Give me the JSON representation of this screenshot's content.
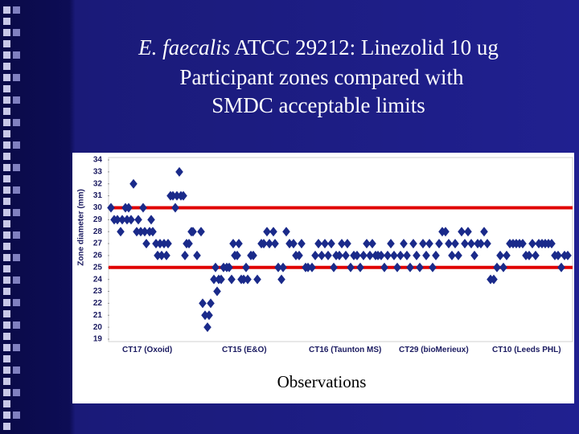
{
  "chart_data": {
    "type": "scatter",
    "title_italic": "E. faecalis",
    "title_rest": " ATCC 29212: Linezolid 10 ug",
    "subtitle_lines": [
      "Participant zones compared with",
      "SMDC acceptable limits"
    ],
    "ylabel": "Zone diameter (mm)",
    "xlabel": "Observations",
    "group_labels": [
      "CT17 (Oxoid)",
      "CT15 (E&O)",
      "CT16 (Taunton MS)",
      "CT29 (bioMerieux)",
      "CT10 (Leeds PHL)"
    ],
    "ylim": [
      19,
      34
    ],
    "yticks": [
      19,
      20,
      21,
      22,
      23,
      24,
      25,
      26,
      27,
      28,
      29,
      30,
      31,
      32,
      33,
      34
    ],
    "xlim": [
      0,
      573
    ],
    "reference_lines": [
      30,
      25
    ],
    "reference_color": "#e00000",
    "series": [
      {
        "name": "Participant zones",
        "color": "#1a2a8a",
        "x": [
          1,
          5,
          9,
          13,
          15,
          19,
          21,
          23,
          26,
          29,
          33,
          35,
          38,
          41,
          43,
          45,
          49,
          51,
          53,
          57,
          59,
          62,
          64,
          67,
          70,
          72,
          75,
          78,
          81,
          83,
          86,
          88,
          91,
          93,
          95,
          98,
          101,
          103,
          108,
          113,
          115,
          118,
          121,
          123,
          125,
          129,
          131,
          133,
          135,
          138,
          141,
          145,
          148,
          151,
          153,
          155,
          158,
          160,
          163,
          166,
          169,
          171,
          175,
          178,
          183,
          188,
          191,
          195,
          198,
          203,
          205,
          209,
          213,
          215,
          219,
          223,
          228,
          231,
          235,
          238,
          243,
          246,
          251,
          255,
          259,
          263,
          267,
          271,
          275,
          278,
          281,
          285,
          288,
          293,
          295,
          299,
          303,
          307,
          311,
          315,
          319,
          323,
          326,
          330,
          333,
          337,
          341,
          345,
          349,
          353,
          357,
          361,
          365,
          369,
          373,
          377,
          381,
          385,
          389,
          393,
          397,
          401,
          405,
          409,
          413,
          417,
          421,
          425,
          429,
          433,
          437,
          441,
          445,
          449,
          453,
          457,
          461,
          465,
          469,
          473,
          477,
          481,
          485,
          489,
          493,
          497,
          501,
          505,
          509,
          513,
          517,
          521,
          525,
          529,
          533,
          537,
          541,
          545,
          549,
          553,
          557,
          561,
          565,
          569
        ],
        "values": [
          30,
          29,
          29,
          28,
          29,
          30,
          29,
          30,
          29,
          32,
          28,
          29,
          28,
          30,
          28,
          27,
          28,
          29,
          28,
          27,
          26,
          27,
          26,
          27,
          26,
          27,
          31,
          31,
          30,
          31,
          33,
          31,
          31,
          26,
          27,
          27,
          28,
          28,
          26,
          28,
          22,
          21,
          20,
          21,
          22,
          24,
          25,
          23,
          24,
          24,
          25,
          25,
          25,
          24,
          27,
          26,
          26,
          27,
          24,
          24,
          25,
          24,
          26,
          26,
          24,
          27,
          27,
          28,
          27,
          28,
          27,
          25,
          24,
          25,
          28,
          27,
          27,
          26,
          26,
          27,
          25,
          25,
          25,
          26,
          27,
          26,
          27,
          26,
          27,
          25,
          26,
          26,
          27,
          26,
          27,
          25,
          26,
          26,
          25,
          26,
          27,
          26,
          27,
          26,
          26,
          26,
          25,
          26,
          27,
          26,
          25,
          26,
          27,
          26,
          25,
          27,
          26,
          25,
          27,
          26,
          27,
          25,
          26,
          27,
          28,
          28,
          27,
          26,
          27,
          26,
          28,
          27,
          28,
          27,
          26,
          27,
          27,
          28,
          27,
          24,
          24,
          25,
          26,
          25,
          26,
          27,
          27,
          27,
          27,
          27,
          26,
          26,
          27,
          26,
          27,
          27,
          27,
          27,
          27,
          26,
          26,
          25,
          26,
          26
        ]
      }
    ]
  }
}
